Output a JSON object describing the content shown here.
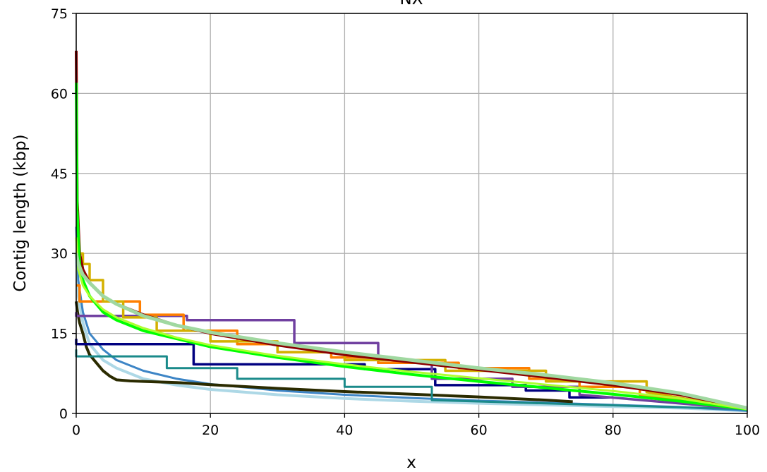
{
  "chart_data": {
    "type": "line",
    "title": "NX",
    "xlabel": "x",
    "ylabel": "Contig length (kbp)",
    "xlim": [
      0,
      100
    ],
    "ylim": [
      0,
      75
    ],
    "xticks": [
      "0",
      "20",
      "40",
      "60",
      "80",
      "100"
    ],
    "yticks": [
      "0",
      "15",
      "30",
      "45",
      "60",
      "75"
    ],
    "grid": true,
    "series": [
      {
        "color": "#add8e6",
        "width": 4,
        "x": [
          0,
          0.3,
          1,
          2,
          4,
          6,
          10,
          15,
          20,
          30,
          40,
          50,
          60,
          70,
          80,
          90,
          100
        ],
        "y": [
          30,
          22,
          17,
          13,
          10,
          8.5,
          6.5,
          5.3,
          4.5,
          3.5,
          2.8,
          2.3,
          1.9,
          1.6,
          1.3,
          1.0,
          0.5
        ]
      },
      {
        "color": "#3d85c6",
        "width": 3,
        "x": [
          0,
          0.3,
          1,
          2,
          4,
          6,
          10,
          15,
          20,
          30,
          40,
          50,
          60,
          70,
          80,
          90,
          100
        ],
        "y": [
          35,
          25,
          19,
          15,
          12,
          10,
          8,
          6.5,
          5.5,
          4.3,
          3.5,
          2.9,
          2.4,
          2.0,
          1.6,
          1.2,
          0.5
        ]
      },
      {
        "color": "#2b2b00",
        "width": 4,
        "x": [
          0,
          0.2,
          0.5,
          1,
          1.5,
          2,
          3,
          4,
          5,
          6,
          8,
          10,
          15,
          20,
          30,
          40,
          50,
          60,
          70,
          74
        ],
        "y": [
          21,
          19,
          17,
          15,
          12.5,
          11,
          9.5,
          8,
          7,
          6.3,
          6.1,
          6.0,
          5.8,
          5.4,
          4.7,
          4.1,
          3.6,
          3.1,
          2.5,
          2.2
        ]
      },
      {
        "color": "#1a8a8a",
        "width": 3,
        "x": [
          0,
          0,
          13.5,
          13.5,
          24,
          24,
          40,
          40,
          53,
          53,
          100
        ],
        "y": [
          12,
          10.7,
          10.7,
          8.5,
          8.5,
          6.5,
          6.5,
          5.0,
          5.0,
          2.5,
          0.8
        ]
      },
      {
        "color": "#000080",
        "width": 3.5,
        "x": [
          0,
          0,
          17.5,
          17.5,
          43,
          43,
          53.5,
          53.5,
          67,
          67,
          73.5,
          73.5,
          80
        ],
        "y": [
          14,
          13,
          13,
          9.2,
          9.2,
          8.3,
          8.3,
          5.3,
          5.3,
          4.3,
          4.3,
          3.0,
          3.0
        ]
      },
      {
        "color": "#7040a0",
        "width": 3.5,
        "x": [
          0,
          0,
          16.5,
          16.5,
          32.5,
          32.5,
          45,
          45,
          53,
          53,
          65,
          65,
          75,
          75,
          100
        ],
        "y": [
          19,
          18.3,
          18.3,
          17.5,
          17.5,
          13.2,
          13.2,
          9.5,
          9.5,
          6.5,
          6.5,
          5.0,
          5.0,
          3.5,
          0.8
        ]
      },
      {
        "color": "#ff7f00",
        "width": 3.5,
        "x": [
          0,
          0.5,
          0.5,
          9.5,
          9.5,
          16,
          16,
          24,
          24,
          30,
          30,
          38,
          38,
          45,
          45,
          57,
          57,
          67.5,
          67.5,
          75,
          75,
          84,
          84,
          100
        ],
        "y": [
          24,
          24,
          21,
          21,
          18.5,
          18.5,
          15.5,
          15.5,
          13,
          13,
          11.5,
          11.5,
          10.5,
          10.5,
          9.5,
          9.5,
          8.5,
          8.5,
          6.5,
          6.5,
          5,
          5,
          3.5,
          0.8
        ]
      },
      {
        "color": "#d4b000",
        "width": 3.5,
        "x": [
          0,
          1,
          1,
          2,
          2,
          4,
          4,
          7,
          7,
          12,
          12,
          20,
          20,
          30,
          30,
          40,
          40,
          55,
          55,
          70,
          70,
          85,
          85,
          100
        ],
        "y": [
          30,
          30,
          28,
          28,
          25,
          25,
          21,
          21,
          18,
          18,
          15.5,
          15.5,
          13.5,
          13.5,
          11.5,
          11.5,
          10,
          10,
          8,
          8,
          6,
          6,
          4,
          0.8
        ]
      },
      {
        "color": "#8b0000",
        "width": 4,
        "x": [
          0,
          0.15,
          0.5,
          1,
          2,
          4,
          6,
          10,
          15,
          20,
          30,
          40,
          50,
          60,
          70,
          80,
          90,
          100
        ],
        "y": [
          68,
          40,
          30,
          27,
          24.5,
          22,
          20.5,
          18.5,
          16.5,
          15,
          12.8,
          11,
          9.6,
          8.2,
          6.8,
          5.3,
          3.5,
          1.0
        ]
      },
      {
        "color": "#00ff00",
        "width": 4,
        "x": [
          0,
          0.15,
          0.5,
          1,
          2,
          4,
          6,
          10,
          15,
          20,
          30,
          40,
          50,
          60,
          70,
          80,
          90,
          100
        ],
        "y": [
          62,
          38,
          28,
          25,
          22,
          19,
          17.5,
          15.5,
          14,
          12.5,
          10.5,
          8.8,
          7.3,
          6.0,
          4.8,
          3.6,
          2.3,
          0.8
        ]
      },
      {
        "color": "#adff2f",
        "width": 3,
        "x": [
          0,
          0.3,
          1,
          2,
          4,
          6,
          10,
          15,
          20,
          30,
          40,
          50,
          60,
          70,
          80,
          90,
          100
        ],
        "y": [
          33,
          27,
          24,
          22,
          19.5,
          18,
          16,
          14.2,
          12.8,
          10.8,
          9.2,
          7.8,
          6.6,
          5.4,
          4.2,
          2.8,
          0.8
        ]
      },
      {
        "color": "#a0d8a0",
        "width": 5,
        "x": [
          0,
          0.3,
          1,
          2,
          4,
          6,
          10,
          15,
          20,
          30,
          40,
          50,
          60,
          70,
          80,
          90,
          100
        ],
        "y": [
          30,
          28,
          26,
          24.5,
          22,
          20.5,
          18.3,
          16.5,
          15.2,
          13.2,
          11.5,
          10,
          8.5,
          7.2,
          5.7,
          3.8,
          1.0
        ]
      }
    ]
  }
}
